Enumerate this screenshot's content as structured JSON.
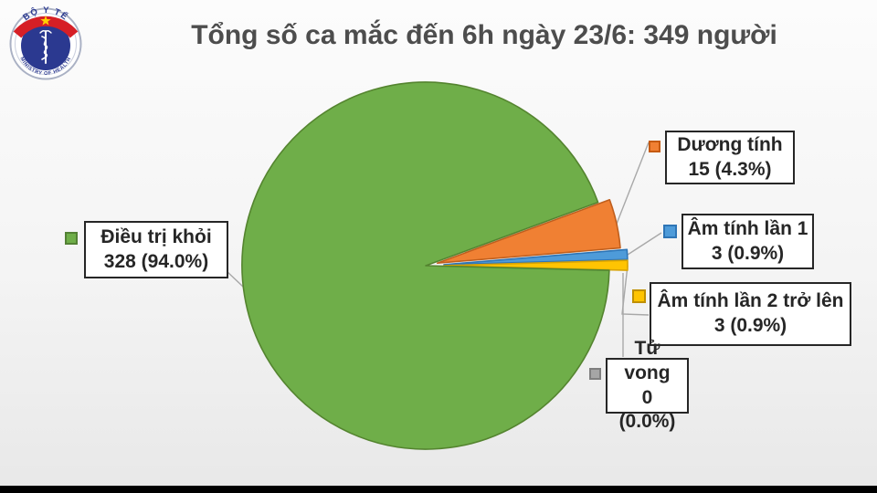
{
  "header": {
    "title": "Tổng số ca mắc đến 6h ngày 23/6: 349 người"
  },
  "logo": {
    "top_text": "BỘ Y TẾ",
    "bottom_text": "MINISTRY OF HEALTH",
    "colors": {
      "navy": "#2B3990",
      "red": "#D61F26",
      "star_yellow": "#FFD200",
      "ring": "#aab1c4"
    }
  },
  "chart_data": {
    "type": "pie",
    "title": "Tổng số ca mắc đến 6h ngày 23/6: 349 người",
    "total": 349,
    "unit": "người",
    "legend_position": "callouts-around-pie",
    "slices": [
      {
        "label": "Dương tính",
        "value": 15,
        "percent": "4.3%",
        "color": "#F08033",
        "border": "#C05F1E",
        "marker_border": "#C55A11"
      },
      {
        "label": "Âm tính lần 1",
        "value": 3,
        "percent": "0.9%",
        "color": "#4E9BD9",
        "border": "#2E75B6",
        "marker_border": "#2E75B6"
      },
      {
        "label": "Âm tính lần 2 trở lên",
        "value": 3,
        "percent": "0.9%",
        "color": "#FFC402",
        "border": "#D9A300",
        "marker_border": "#BF8F00"
      },
      {
        "label": "Tử vong",
        "value": 0,
        "percent": "0.0%",
        "color": "#A6A6A6",
        "border": "#7F7F7F",
        "marker_border": "#7F7F7F"
      },
      {
        "label": "Điều trị khỏi",
        "value": 328,
        "percent": "94.0%",
        "color": "#6FAE49",
        "border": "#54842F",
        "marker_border": "#538135"
      }
    ]
  }
}
